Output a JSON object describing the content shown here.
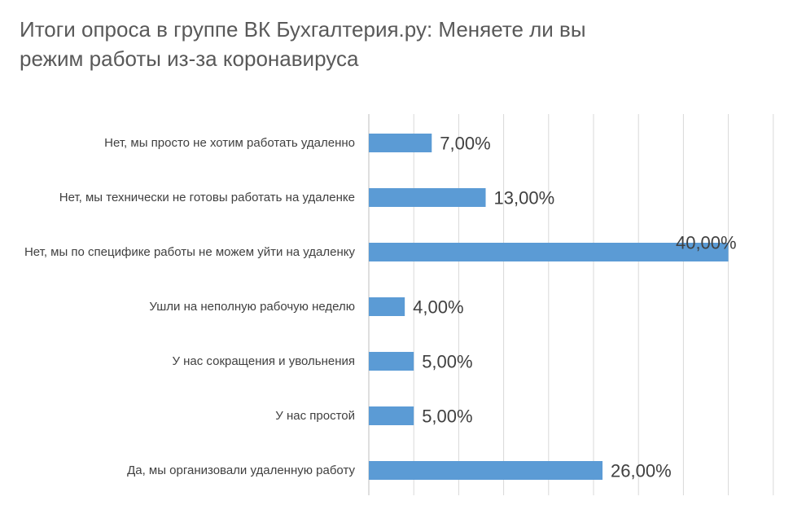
{
  "chart_data": {
    "type": "bar",
    "orientation": "horizontal",
    "title": "Итоги опроса в группе ВК Бухгалтерия.ру: Меняете ли вы режим работы из-за коронавируса",
    "categories": [
      "Нет, мы просто не хотим работать удаленно",
      "Нет, мы технически не готовы работать на удаленке",
      "Нет, мы по специфике работы не можем уйти на удаленку",
      "Ушли на неполную рабочую неделю",
      "У нас сокращения и увольнения",
      "У нас простой",
      "Да, мы организовали удаленную работу"
    ],
    "values": [
      7,
      13,
      40,
      4,
      5,
      5,
      26
    ],
    "data_labels": [
      "7,00%",
      "13,00%",
      "40,00%",
      "4,00%",
      "5,00%",
      "5,00%",
      "26,00%"
    ],
    "xlim": [
      0,
      45
    ],
    "grid": true,
    "bar_color": "#5b9bd5"
  }
}
